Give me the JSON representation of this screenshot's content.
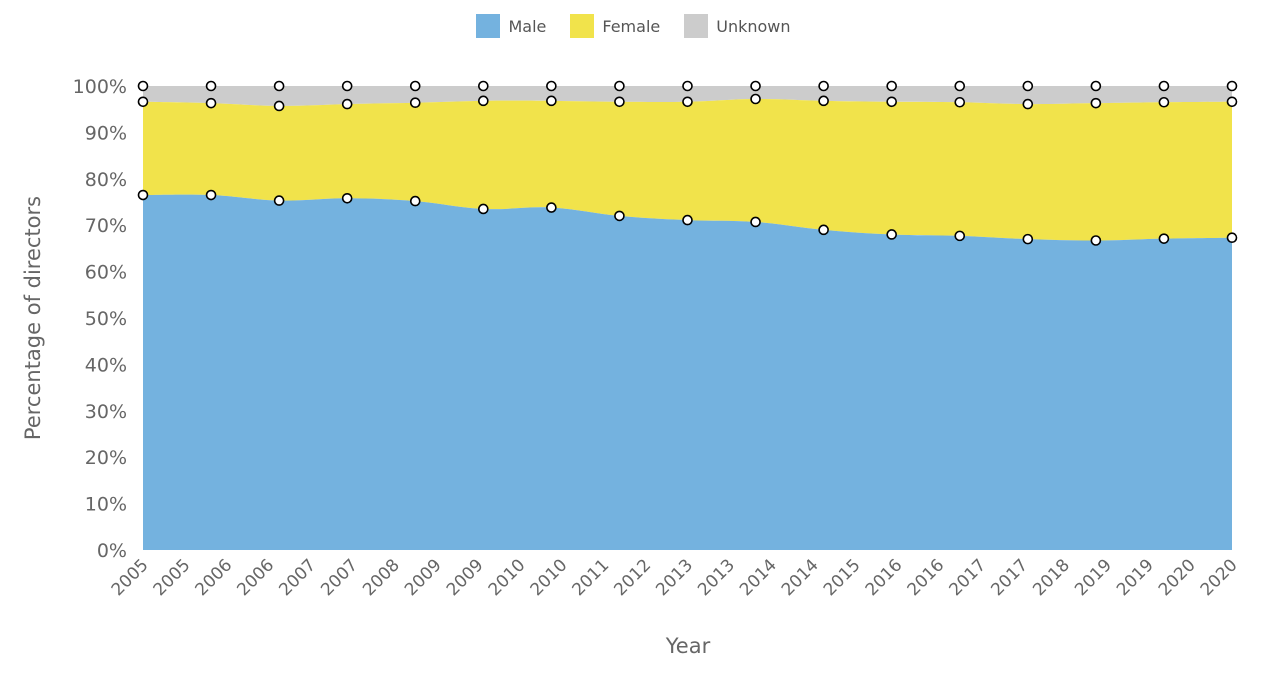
{
  "colors": {
    "male": "#74b2df",
    "female": "#f1e34b",
    "unknown": "#cccccc",
    "text": "#666666",
    "marker_fill": "#ffffff",
    "marker_stroke": "#000000"
  },
  "legend": [
    {
      "key": "male",
      "label": "Male",
      "color": "#74b2df"
    },
    {
      "key": "female",
      "label": "Female",
      "color": "#f1e34b"
    },
    {
      "key": "unknown",
      "label": "Unknown",
      "color": "#cccccc"
    }
  ],
  "chart_data": {
    "type": "area",
    "stacked": true,
    "percent_stacked": true,
    "title": "",
    "xlabel": "Year",
    "ylabel": "Percentage of directors",
    "ylim": [
      0,
      100
    ],
    "y_ticks": [
      "0%",
      "10%",
      "20%",
      "30%",
      "40%",
      "50%",
      "60%",
      "70%",
      "80%",
      "90%",
      "100%"
    ],
    "x_tick_labels": [
      "2005",
      "2005",
      "2006",
      "2006",
      "2007",
      "2007",
      "2008",
      "2009",
      "2009",
      "2010",
      "2010",
      "2011",
      "2012",
      "2013",
      "2013",
      "2014",
      "2014",
      "2015",
      "2016",
      "2016",
      "2017",
      "2017",
      "2018",
      "2019",
      "2019",
      "2020",
      "2020"
    ],
    "marker_dates": [
      "2005",
      "2006",
      "2007",
      "2008",
      "2009",
      "2010",
      "2011",
      "2012",
      "2013",
      "2014",
      "2015",
      "2016",
      "2017",
      "2018",
      "2019",
      "2020",
      "2021"
    ],
    "grid": false,
    "legend_position": "top",
    "series": [
      {
        "name": "Male",
        "key": "male",
        "values": [
          76.5,
          76.5,
          75.3,
          75.8,
          75.2,
          73.5,
          73.8,
          72.0,
          71.1,
          70.7,
          69.0,
          68.0,
          67.7,
          67.0,
          66.7,
          67.1,
          67.3
        ]
      },
      {
        "name": "Female",
        "key": "female",
        "values": [
          20.1,
          19.8,
          20.4,
          20.3,
          21.2,
          23.3,
          23.0,
          24.6,
          25.5,
          26.5,
          27.8,
          28.6,
          28.8,
          29.1,
          29.6,
          29.4,
          29.3
        ]
      },
      {
        "name": "Unknown",
        "key": "unknown",
        "values": [
          3.4,
          3.7,
          4.3,
          3.9,
          3.6,
          3.2,
          3.2,
          3.4,
          3.4,
          2.8,
          3.2,
          3.4,
          3.5,
          3.9,
          3.7,
          3.5,
          3.4
        ]
      }
    ]
  }
}
